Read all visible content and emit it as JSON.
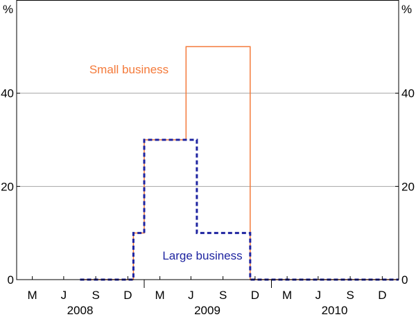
{
  "chart_data": {
    "type": "line",
    "step": true,
    "y_unit_left": "%",
    "y_unit_right": "%",
    "ylim": [
      0,
      60
    ],
    "yticks": [
      0,
      20,
      40
    ],
    "grid": "horizontal",
    "xlim": [
      "2008-01-01",
      "2011-01-01"
    ],
    "x_tick_labels": [
      "M",
      "J",
      "S",
      "D",
      "M",
      "J",
      "S",
      "D",
      "M",
      "J",
      "S",
      "D"
    ],
    "x_tick_dates": [
      "2008-02-15",
      "2008-05-15",
      "2008-08-15",
      "2008-11-15",
      "2009-02-15",
      "2009-05-15",
      "2009-08-15",
      "2009-11-15",
      "2010-02-15",
      "2010-05-15",
      "2010-08-15",
      "2010-11-15"
    ],
    "year_labels": [
      {
        "label": "2008",
        "date": "2008-07-01"
      },
      {
        "label": "2009",
        "date": "2009-07-01"
      },
      {
        "label": "2010",
        "date": "2010-07-01"
      }
    ],
    "year_boundaries": [
      "2009-01-01",
      "2010-01-01"
    ],
    "series": [
      {
        "name": "Small business",
        "color": "#f47a3a",
        "style": "solid",
        "points": [
          {
            "x": "2008-07-01",
            "y": 0
          },
          {
            "x": "2008-12-01",
            "y": 10
          },
          {
            "x": "2009-01-01",
            "y": 30
          },
          {
            "x": "2009-05-01",
            "y": 50
          },
          {
            "x": "2009-11-01",
            "y": 0
          },
          {
            "x": "2011-01-01",
            "y": 0
          }
        ]
      },
      {
        "name": "Large business",
        "color": "#1e24a0",
        "style": "dashed",
        "points": [
          {
            "x": "2008-07-01",
            "y": 0
          },
          {
            "x": "2008-12-01",
            "y": 10
          },
          {
            "x": "2009-01-01",
            "y": 30
          },
          {
            "x": "2009-06-01",
            "y": 10
          },
          {
            "x": "2009-11-01",
            "y": 0
          },
          {
            "x": "2011-01-01",
            "y": 0
          }
        ]
      }
    ]
  }
}
